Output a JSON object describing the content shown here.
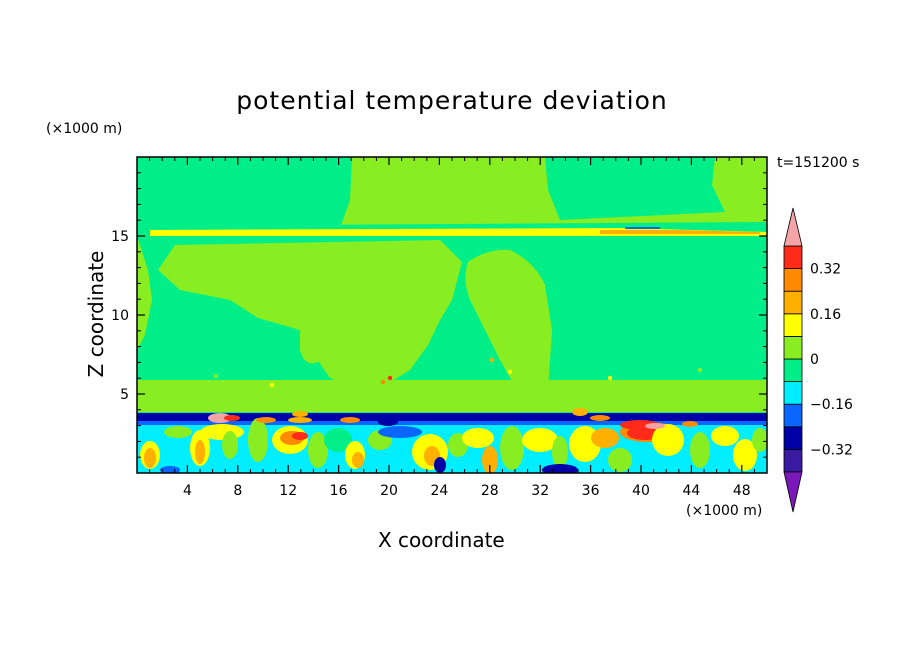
{
  "chart_data": {
    "type": "heatmap",
    "title": "potential temperature deviation",
    "xlabel": "X coordinate",
    "ylabel": "Z coordinate",
    "x_unit": "(×1000 m)",
    "y_unit": "(×1000 m)",
    "time_label": "t=151200 s",
    "xlim": [
      0,
      50
    ],
    "ylim": [
      0,
      20
    ],
    "x_ticks": [
      4,
      8,
      12,
      16,
      20,
      24,
      28,
      32,
      36,
      40,
      44,
      48
    ],
    "y_ticks": [
      5,
      10,
      15
    ],
    "colorbar": {
      "levels": [
        -0.4,
        -0.32,
        -0.24,
        -0.16,
        -0.08,
        0,
        0.08,
        0.16,
        0.24,
        0.32,
        0.4
      ],
      "labels": [
        {
          "value": 0.32,
          "text": "0.32"
        },
        {
          "value": 0.16,
          "text": "0.16"
        },
        {
          "value": 0,
          "text": "0"
        },
        {
          "value": -0.16,
          "text": "−0.16"
        },
        {
          "value": -0.32,
          "text": "−0.32"
        }
      ],
      "colors": {
        "over": "#f4a4a4",
        "b8": "#ff2a1a",
        "b7": "#ff8a00",
        "b6": "#ffb000",
        "b5": "#ffff00",
        "b4": "#88ee22",
        "b3": "#00ee88",
        "b2": "#00eeff",
        "b1": "#0a66ff",
        "b0": "#0000a8",
        "bm": "#3a1aa0",
        "under": "#7a18b8"
      }
    }
  }
}
